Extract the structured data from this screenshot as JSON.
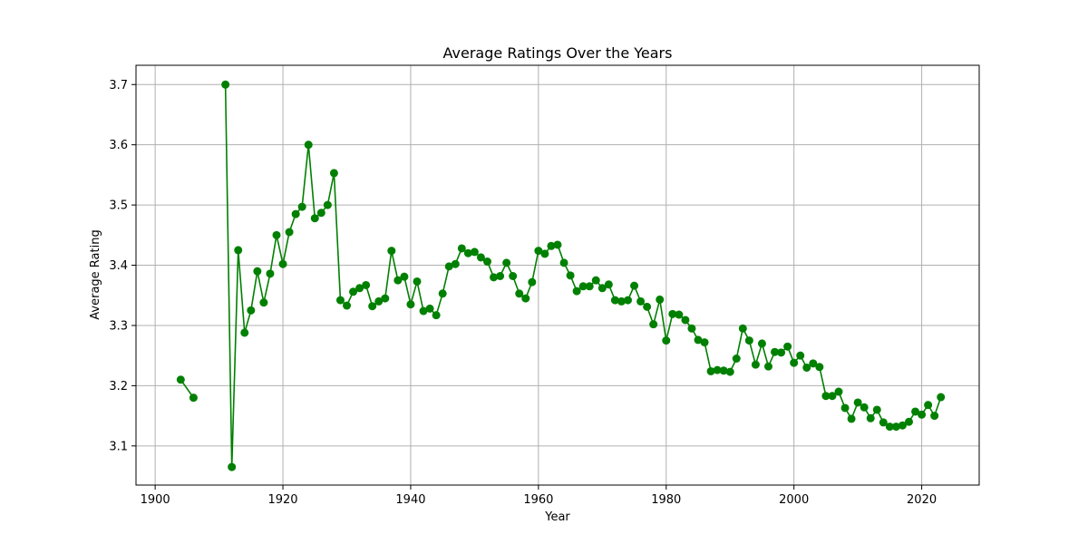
{
  "chart_data": {
    "type": "line",
    "title": "Average Ratings Over the Years",
    "xlabel": "Year",
    "ylabel": "Average Rating",
    "xlim": [
      1897,
      2029
    ],
    "ylim": [
      3.035,
      3.732
    ],
    "xticks": [
      1900,
      1920,
      1940,
      1960,
      1980,
      2000,
      2020
    ],
    "yticks": [
      3.1,
      3.2,
      3.3,
      3.4,
      3.5,
      3.6,
      3.7
    ],
    "grid": true,
    "line_color": "#008000",
    "marker": "circle",
    "series": [
      {
        "segments": [
          [
            [
              1904,
              3.21
            ],
            [
              1906,
              3.18
            ]
          ],
          [
            [
              1911,
              3.7
            ],
            [
              1912,
              3.065
            ],
            [
              1913,
              3.425
            ],
            [
              1914,
              3.288
            ],
            [
              1915,
              3.325
            ],
            [
              1916,
              3.39
            ],
            [
              1917,
              3.338
            ],
            [
              1918,
              3.386
            ],
            [
              1919,
              3.45
            ],
            [
              1920,
              3.402
            ],
            [
              1921,
              3.455
            ],
            [
              1922,
              3.485
            ],
            [
              1923,
              3.497
            ],
            [
              1924,
              3.6
            ],
            [
              1925,
              3.478
            ],
            [
              1926,
              3.487
            ],
            [
              1927,
              3.5
            ],
            [
              1928,
              3.553
            ],
            [
              1929,
              3.342
            ],
            [
              1930,
              3.333
            ],
            [
              1931,
              3.356
            ],
            [
              1932,
              3.362
            ],
            [
              1933,
              3.367
            ],
            [
              1934,
              3.332
            ],
            [
              1935,
              3.34
            ],
            [
              1936,
              3.345
            ],
            [
              1937,
              3.424
            ],
            [
              1938,
              3.375
            ],
            [
              1939,
              3.381
            ],
            [
              1940,
              3.335
            ],
            [
              1941,
              3.373
            ],
            [
              1942,
              3.324
            ],
            [
              1943,
              3.328
            ],
            [
              1944,
              3.317
            ],
            [
              1945,
              3.353
            ],
            [
              1946,
              3.398
            ],
            [
              1947,
              3.402
            ],
            [
              1948,
              3.428
            ],
            [
              1949,
              3.42
            ],
            [
              1950,
              3.422
            ],
            [
              1951,
              3.413
            ],
            [
              1952,
              3.406
            ],
            [
              1953,
              3.38
            ],
            [
              1954,
              3.382
            ],
            [
              1955,
              3.404
            ],
            [
              1956,
              3.382
            ],
            [
              1957,
              3.353
            ],
            [
              1958,
              3.345
            ],
            [
              1959,
              3.372
            ],
            [
              1960,
              3.424
            ],
            [
              1961,
              3.419
            ],
            [
              1962,
              3.432
            ],
            [
              1963,
              3.434
            ],
            [
              1964,
              3.404
            ],
            [
              1965,
              3.383
            ],
            [
              1966,
              3.357
            ],
            [
              1967,
              3.365
            ],
            [
              1968,
              3.365
            ],
            [
              1969,
              3.375
            ],
            [
              1970,
              3.362
            ],
            [
              1971,
              3.368
            ],
            [
              1972,
              3.342
            ],
            [
              1973,
              3.34
            ],
            [
              1974,
              3.342
            ],
            [
              1975,
              3.366
            ],
            [
              1976,
              3.34
            ],
            [
              1977,
              3.331
            ],
            [
              1978,
              3.302
            ],
            [
              1979,
              3.343
            ],
            [
              1980,
              3.275
            ],
            [
              1981,
              3.319
            ],
            [
              1982,
              3.318
            ],
            [
              1983,
              3.309
            ],
            [
              1984,
              3.295
            ],
            [
              1985,
              3.276
            ],
            [
              1986,
              3.272
            ],
            [
              1987,
              3.224
            ],
            [
              1988,
              3.226
            ],
            [
              1989,
              3.225
            ],
            [
              1990,
              3.223
            ],
            [
              1991,
              3.245
            ],
            [
              1992,
              3.295
            ],
            [
              1993,
              3.275
            ],
            [
              1994,
              3.235
            ],
            [
              1995,
              3.27
            ],
            [
              1996,
              3.232
            ],
            [
              1997,
              3.256
            ],
            [
              1998,
              3.255
            ],
            [
              1999,
              3.265
            ],
            [
              2000,
              3.238
            ],
            [
              2001,
              3.25
            ],
            [
              2002,
              3.23
            ],
            [
              2003,
              3.237
            ],
            [
              2004,
              3.231
            ],
            [
              2005,
              3.183
            ],
            [
              2006,
              3.183
            ],
            [
              2007,
              3.19
            ],
            [
              2008,
              3.163
            ],
            [
              2009,
              3.145
            ],
            [
              2010,
              3.172
            ],
            [
              2011,
              3.164
            ],
            [
              2012,
              3.146
            ],
            [
              2013,
              3.16
            ],
            [
              2014,
              3.139
            ],
            [
              2015,
              3.132
            ],
            [
              2016,
              3.132
            ],
            [
              2017,
              3.134
            ],
            [
              2018,
              3.14
            ],
            [
              2019,
              3.157
            ],
            [
              2020,
              3.152
            ],
            [
              2021,
              3.168
            ],
            [
              2022,
              3.15
            ],
            [
              2023,
              3.181
            ]
          ]
        ]
      }
    ]
  }
}
